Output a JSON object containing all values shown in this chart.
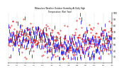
{
  "title": "Milwaukee Weather Outdoor Humidity At Daily High Temperature (Past Year)",
  "bg_color": "#ffffff",
  "plot_bg": "#ffffff",
  "grid_color": "#888888",
  "blue_color": "#0000dd",
  "red_color": "#dd0000",
  "n_points": 365,
  "ylim": [
    20,
    100
  ],
  "yticks": [
    30,
    40,
    50,
    60,
    70,
    80,
    90,
    100
  ],
  "n_months": 13,
  "month_labels": [
    "Jan",
    "Feb",
    "Mar",
    "Apr",
    "May",
    "Jun",
    "Jul",
    "Aug",
    "Sep",
    "Oct",
    "Nov",
    "Dec",
    "Jan"
  ],
  "seed": 99,
  "spike_index": 252,
  "spike_value": 97,
  "spike2_index": 258,
  "spike2_value": 90
}
